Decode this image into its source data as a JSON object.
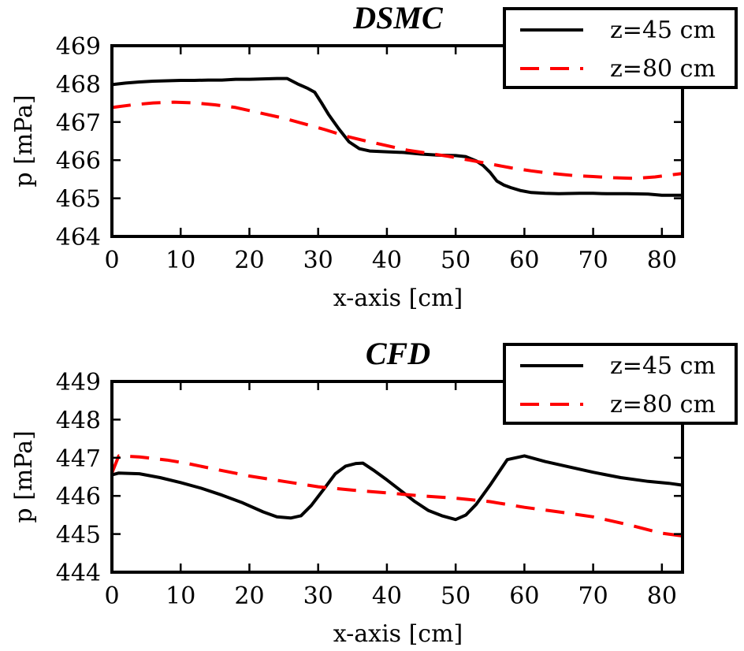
{
  "chart_data": [
    {
      "type": "line",
      "title": "DSMC",
      "xlabel": "x-axis [cm]",
      "ylabel": "p [mPa]",
      "xlim": [
        0,
        83
      ],
      "ylim": [
        464,
        469
      ],
      "xticks": [
        0,
        10,
        20,
        30,
        40,
        50,
        60,
        70,
        80
      ],
      "yticks": [
        464,
        465,
        466,
        467,
        468,
        469
      ],
      "legend_position": "top-right",
      "series": [
        {
          "name": "z=45 cm",
          "color": "#000000",
          "style": "solid",
          "x": [
            0,
            2,
            4,
            6,
            8,
            10,
            12,
            14,
            16,
            18,
            20,
            22,
            24,
            25.5,
            27,
            28.5,
            29.5,
            30.5,
            31.5,
            33,
            34.5,
            36,
            37.5,
            40,
            42.5,
            45,
            47.5,
            50,
            51.5,
            53,
            54,
            55,
            56,
            57,
            58,
            59.5,
            61,
            63,
            65,
            68,
            70,
            72,
            75,
            78,
            80,
            83
          ],
          "values": [
            467.98,
            468.02,
            468.05,
            468.07,
            468.08,
            468.09,
            468.09,
            468.1,
            468.1,
            468.12,
            468.12,
            468.13,
            468.14,
            468.14,
            468.0,
            467.88,
            467.78,
            467.5,
            467.2,
            466.82,
            466.48,
            466.3,
            466.24,
            466.22,
            466.2,
            466.16,
            466.13,
            466.12,
            466.09,
            465.98,
            465.86,
            465.68,
            465.45,
            465.35,
            465.28,
            465.2,
            465.15,
            465.13,
            465.12,
            465.13,
            465.13,
            465.12,
            465.12,
            465.11,
            465.08,
            465.08
          ]
        },
        {
          "name": "z=80 cm",
          "color": "#ff0000",
          "style": "dashed",
          "x": [
            0,
            3,
            6,
            9,
            12,
            15,
            18,
            20,
            22,
            25,
            28,
            31,
            34,
            37,
            40,
            43,
            46,
            49,
            52,
            55,
            58,
            61,
            64,
            67,
            70,
            73,
            76,
            79,
            83
          ],
          "values": [
            467.38,
            467.45,
            467.5,
            467.52,
            467.5,
            467.45,
            467.38,
            467.3,
            467.22,
            467.1,
            466.95,
            466.8,
            466.63,
            466.5,
            466.38,
            466.26,
            466.18,
            466.1,
            466.0,
            465.9,
            465.8,
            465.72,
            465.65,
            465.6,
            465.57,
            465.54,
            465.52,
            465.56,
            465.65
          ]
        }
      ]
    },
    {
      "type": "line",
      "title": "CFD",
      "xlabel": "x-axis [cm]",
      "ylabel": "p [mPa]",
      "xlim": [
        0,
        83
      ],
      "ylim": [
        444,
        449
      ],
      "xticks": [
        0,
        10,
        20,
        30,
        40,
        50,
        60,
        70,
        80
      ],
      "yticks": [
        444,
        445,
        446,
        447,
        448,
        449
      ],
      "legend_position": "top-right",
      "series": [
        {
          "name": "z=45 cm",
          "color": "#000000",
          "style": "solid",
          "x": [
            0,
            1,
            4,
            7,
            10,
            13,
            16,
            19,
            22,
            24,
            26,
            27.5,
            29,
            31,
            32.5,
            34,
            35.5,
            36.5,
            38,
            40,
            42,
            44,
            46,
            48,
            50,
            51.5,
            53,
            55,
            57.5,
            60,
            63,
            66,
            70,
            74,
            78,
            81,
            83
          ],
          "values": [
            446.55,
            446.6,
            446.58,
            446.48,
            446.35,
            446.2,
            446.02,
            445.82,
            445.58,
            445.45,
            445.42,
            445.48,
            445.75,
            446.22,
            446.58,
            446.78,
            446.85,
            446.86,
            446.68,
            446.42,
            446.14,
            445.86,
            445.62,
            445.48,
            445.38,
            445.5,
            445.78,
            446.28,
            446.95,
            447.05,
            446.9,
            446.78,
            446.62,
            446.48,
            446.38,
            446.33,
            446.28
          ]
        },
        {
          "name": "z=80 cm",
          "color": "#ff0000",
          "style": "dashed",
          "x": [
            0,
            1,
            4,
            8,
            11,
            15,
            20,
            25,
            30,
            35,
            40,
            45,
            50,
            55,
            60,
            65,
            70,
            75,
            80,
            83
          ],
          "values": [
            446.6,
            447.05,
            447.02,
            446.94,
            446.85,
            446.7,
            446.52,
            446.38,
            446.24,
            446.15,
            446.08,
            446.0,
            445.94,
            445.85,
            445.7,
            445.58,
            445.45,
            445.25,
            445.02,
            444.95
          ]
        }
      ]
    }
  ]
}
